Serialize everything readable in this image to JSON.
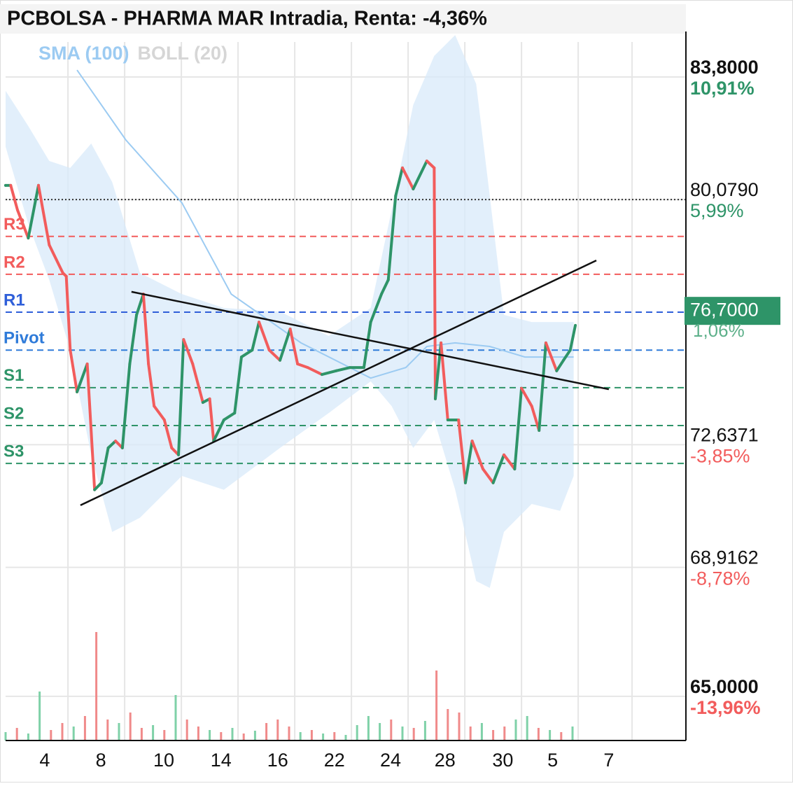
{
  "chart_data": {
    "type": "line",
    "title": "PCBOLSA - PHARMA MAR Intradia, Renta: -4,36%",
    "legend": [
      {
        "text": "SMA (100)",
        "color": "#9ccbf2"
      },
      {
        "text": "BOLL (20)",
        "color": "#d6d6d6"
      }
    ],
    "xlim": [
      0,
      120
    ],
    "ylim": [
      63.66,
      85.18
    ],
    "xticks": [
      {
        "value": 6.9,
        "label": "4"
      },
      {
        "value": 16.8,
        "label": "8"
      },
      {
        "value": 27.9,
        "label": "10"
      },
      {
        "value": 38,
        "label": "14"
      },
      {
        "value": 48,
        "label": "16"
      },
      {
        "value": 58,
        "label": "22"
      },
      {
        "value": 67.9,
        "label": "24"
      },
      {
        "value": 77.5,
        "label": "28"
      },
      {
        "value": 87.7,
        "label": "30"
      },
      {
        "value": 96.5,
        "label": "5"
      },
      {
        "value": 106.4,
        "label": "7"
      }
    ],
    "xgrid": [
      11,
      21,
      31,
      41,
      51,
      61,
      71,
      81,
      91,
      101,
      110.5
    ],
    "yticks": [
      {
        "value": 83.8,
        "label": "83,8000"
      },
      {
        "value": 80.079,
        "label": "80,0790"
      },
      {
        "value": 72.6371,
        "label": "72,6371"
      },
      {
        "value": 68.9162,
        "label": "68,9162"
      },
      {
        "value": 65,
        "label": "65,0000"
      }
    ],
    "ytick_changes": [
      "10,91%",
      "5,99%",
      "-3,85%",
      "-8,78%",
      "-13,96%"
    ],
    "reference_line": 80.079,
    "up_color": "#2e9468",
    "down_color": "#f25c5c",
    "price": {
      "x": [
        0,
        0.9,
        2.1,
        4,
        5.8,
        7.7,
        10.1,
        10.7,
        11.4,
        12.6,
        14.4,
        15.7,
        16.9,
        18.1,
        19.4,
        20.6,
        21.9,
        23.1,
        24.3,
        25.2,
        26.2,
        28,
        29.3,
        30.5,
        31.4,
        33,
        34.8,
        36,
        36.7,
        38.5,
        40.4,
        41.6,
        43.5,
        44.7,
        46.5,
        48.4,
        50.2,
        51.5,
        53.3,
        55.8,
        58.3,
        60.7,
        63.2,
        64.4,
        66.3,
        67.5,
        68.8,
        70,
        71.9,
        74.3,
        75.6,
        75.8,
        76.8,
        78,
        79.9,
        81.1,
        82.3,
        84.2,
        86,
        87.9,
        89.8,
        91,
        92.8,
        94.1,
        95.3,
        97.2,
        98.4,
        99.6,
        100.5
      ],
      "values": [
        80.51,
        80.51,
        79.76,
        78.91,
        80.51,
        78.7,
        77.85,
        77.75,
        75.51,
        74.24,
        75.09,
        71.27,
        71.48,
        72.54,
        72.75,
        72.54,
        75.09,
        76.58,
        77.21,
        75.09,
        73.81,
        73.39,
        72.54,
        72.33,
        75.83,
        75.09,
        73.92,
        74.03,
        72.75,
        73.39,
        73.6,
        75.3,
        75.51,
        76.36,
        75.51,
        75.2,
        76.15,
        75.09,
        74.98,
        74.77,
        74.88,
        74.98,
        74.98,
        76.36,
        77.21,
        77.64,
        80.19,
        81.04,
        80.4,
        81.25,
        81.04,
        74.03,
        75.73,
        73.39,
        73.39,
        71.48,
        72.75,
        71.9,
        71.48,
        72.33,
        71.9,
        74.35,
        73.81,
        73.07,
        75.73,
        74.88,
        75.2,
        75.51,
        76.26
      ]
    },
    "sma": {
      "x": [
        12.6,
        21.2,
        31.1,
        39.8,
        52.1,
        64.4,
        70.6,
        74.3,
        79.3,
        85.4,
        91.6,
        100.2
      ],
      "values": [
        84.01,
        81.89,
        79.98,
        77.21,
        75.73,
        74.66,
        74.98,
        75.62,
        75.73,
        75.62,
        75.3,
        75.3
      ]
    },
    "bollinger": {
      "x": [
        0,
        4,
        7.7,
        11.4,
        15.1,
        18.8,
        23.7,
        31.1,
        38.5,
        48.4,
        57,
        64.4,
        68.1,
        71.9,
        75.6,
        79.3,
        83,
        85.4,
        87.9,
        92.8,
        97.8,
        100.2
      ],
      "upper": [
        83.38,
        82.31,
        81.25,
        81.04,
        81.78,
        80.61,
        77.85,
        77.21,
        76.79,
        76.68,
        75.94,
        76.79,
        79.76,
        82.95,
        84.44,
        85.07,
        83.59,
        80.19,
        76.58,
        76.36,
        76.36,
        76.36
      ],
      "lower": [
        81.68,
        79.34,
        77.64,
        75.51,
        72.33,
        69.99,
        70.42,
        71.69,
        71.27,
        72.54,
        73.6,
        74.56,
        73.81,
        72.54,
        73.39,
        71.27,
        68.5,
        68.29,
        69.99,
        70.84,
        70.63,
        71.69
      ]
    },
    "levels": [
      {
        "label": "R3",
        "value": 78.96,
        "color": "#f25c5c"
      },
      {
        "label": "R2",
        "value": 77.81,
        "color": "#f25c5c"
      },
      {
        "label": "R1",
        "value": 76.66,
        "color": "#2f5fd9"
      },
      {
        "label": "Pivot",
        "value": 75.51,
        "color": "#2f7bd9"
      },
      {
        "label": "S1",
        "value": 74.37,
        "color": "#2e9468"
      },
      {
        "label": "S2",
        "value": 73.22,
        "color": "#2e9468"
      },
      {
        "label": "S3",
        "value": 72.07,
        "color": "#2e9468"
      }
    ],
    "trendlines": [
      {
        "x": [
          22.2,
          106.4
        ],
        "y": [
          77.28,
          74.32
        ]
      },
      {
        "x": [
          13.2,
          104.2
        ],
        "y": [
          70.8,
          78.23
        ]
      }
    ],
    "last_price": {
      "value": 76.7,
      "label": "76,7000",
      "change": "1,06%",
      "color": "#2e9468"
    },
    "volume": {
      "x": [
        0,
        2,
        4,
        6,
        8,
        10,
        12,
        14,
        16,
        18,
        20,
        22,
        24,
        26,
        28,
        30,
        32,
        34,
        36,
        38,
        40,
        42,
        44,
        46,
        48,
        50,
        52,
        54,
        56,
        58,
        60,
        62,
        64,
        66,
        68,
        70,
        72,
        74,
        76,
        78,
        80,
        82,
        84,
        86,
        88,
        90,
        92,
        94,
        96,
        98,
        100
      ],
      "values": [
        12,
        18,
        10,
        70,
        15,
        25,
        20,
        35,
        155,
        30,
        25,
        40,
        18,
        22,
        15,
        65,
        30,
        20,
        15,
        12,
        18,
        10,
        14,
        25,
        30,
        20,
        12,
        15,
        10,
        12,
        8,
        22,
        35,
        25,
        30,
        20,
        18,
        28,
        100,
        45,
        40,
        20,
        25,
        15,
        20,
        30,
        35,
        18,
        15,
        12,
        20
      ],
      "up": [
        true,
        false,
        true,
        true,
        false,
        false,
        true,
        false,
        false,
        false,
        true,
        false,
        false,
        true,
        false,
        true,
        false,
        false,
        true,
        false,
        true,
        false,
        true,
        false,
        false,
        false,
        true,
        false,
        true,
        false,
        true,
        true,
        true,
        true,
        false,
        true,
        false,
        true,
        false,
        false,
        false,
        false,
        true,
        false,
        false,
        true,
        true,
        false,
        true,
        false,
        true
      ]
    }
  }
}
